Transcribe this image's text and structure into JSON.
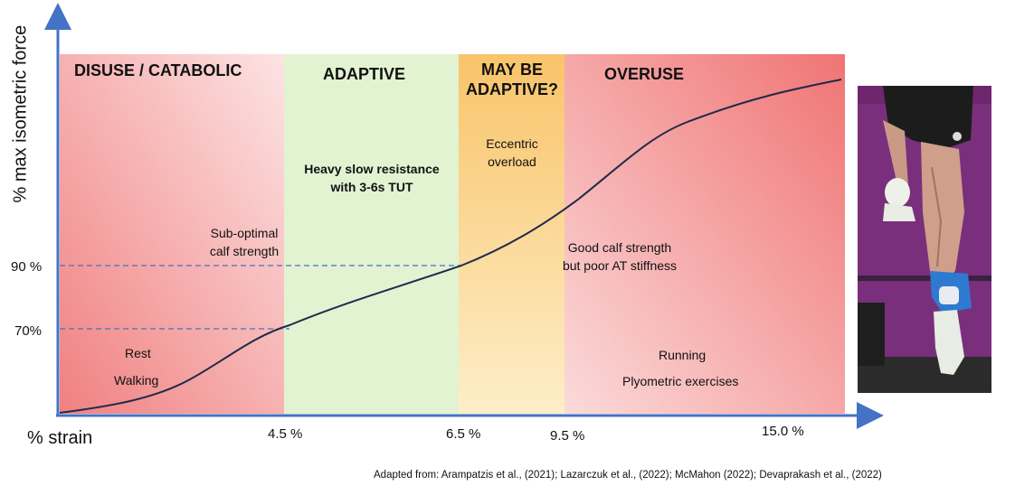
{
  "diagram": {
    "y_axis_label": "% max isometric force",
    "x_axis_label": "% strain",
    "y_ticks": [
      {
        "label": "90 %"
      },
      {
        "label": "70%"
      }
    ],
    "x_ticks": [
      {
        "label": "4.5 %"
      },
      {
        "label": "6.5 %"
      },
      {
        "label": "9.5 %"
      },
      {
        "label": "15.0 %"
      }
    ],
    "zones": [
      {
        "title": "DISUSE / CATABOLIC",
        "color_from": "#f08c8c",
        "color_to": "#fde0e0"
      },
      {
        "title": "ADAPTIVE",
        "color": "#e3f3d3"
      },
      {
        "title": "MAY BE ADAPTIVE?",
        "color_from": "#fde9bb",
        "color_to": "#f9c771"
      },
      {
        "title": "OVERUSE",
        "color_from": "#f9d3d3",
        "color_to": "#f27c7c"
      }
    ],
    "notes": {
      "sub_optimal": "Sub-optimal calf strength",
      "rest": "Rest",
      "walking": "Walking",
      "heavy_slow": "Heavy slow resistance with 3-6s TUT",
      "eccentric": "Eccentric overload",
      "good_calf": "Good calf strength but poor AT stiffness",
      "running": "Running",
      "plyometric": "Plyometric exercises"
    },
    "citation": "Adapted from: Arampatzis et al., (2021); Lazarczuk et al., (2022); McMahon (2022); Devaprakash et al., (2022)",
    "colors": {
      "axis": "#4472c4",
      "curve": "#1f2a4a",
      "dashed": "#4472c4",
      "photo_wall": "#7a2f7c"
    }
  }
}
